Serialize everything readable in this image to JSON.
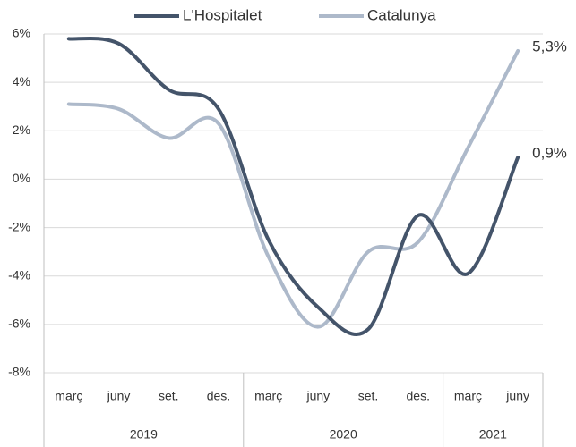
{
  "chart_data": {
    "type": "line",
    "categories": [
      "març",
      "juny",
      "set.",
      "des.",
      "març",
      "juny",
      "set.",
      "des.",
      "març",
      "juny"
    ],
    "groups": [
      {
        "label": "2019",
        "count": 4
      },
      {
        "label": "2020",
        "count": 4
      },
      {
        "label": "2021",
        "count": 2
      }
    ],
    "series": [
      {
        "name": "L'Hospitalet",
        "color": "#44546a",
        "values": [
          5.8,
          5.6,
          3.7,
          2.9,
          -2.5,
          -5.3,
          -6.2,
          -1.5,
          -3.9,
          0.9
        ],
        "value_labels": [
          null,
          null,
          null,
          null,
          null,
          null,
          null,
          null,
          null,
          "0,9%"
        ]
      },
      {
        "name": "Catalunya",
        "color": "#adb9ca",
        "values": [
          3.1,
          2.9,
          1.7,
          2.3,
          -3.2,
          -6.1,
          -3.0,
          -2.6,
          1.3,
          5.3
        ],
        "value_labels": [
          null,
          null,
          null,
          null,
          null,
          null,
          null,
          null,
          null,
          "5,3%"
        ]
      }
    ],
    "ylim": [
      -8,
      6
    ],
    "yticks": [
      {
        "value": -8,
        "label": "-8%"
      },
      {
        "value": -6,
        "label": "-6%"
      },
      {
        "value": -4,
        "label": "-4%"
      },
      {
        "value": -2,
        "label": "-2%"
      },
      {
        "value": 0,
        "label": "0%"
      },
      {
        "value": 2,
        "label": "2%"
      },
      {
        "value": 4,
        "label": "4%"
      },
      {
        "value": 6,
        "label": "6%"
      }
    ],
    "grid": true
  }
}
